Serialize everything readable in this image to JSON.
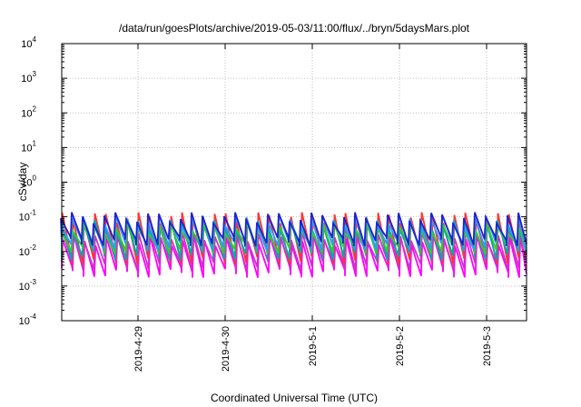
{
  "chart_data": {
    "type": "line",
    "title": "/data/run/goesPlots/archive/2019-05-03/11:00/flux/../bryn/5daysMars.plot",
    "xlabel": "Coordinated Universal Time (UTC)",
    "ylabel": "cSv/day",
    "yscale": "log",
    "ylim": [
      0.0001,
      10000
    ],
    "yticks": [
      {
        "base": "10",
        "exp": "-4",
        "value": 0.0001
      },
      {
        "base": "10",
        "exp": "-3",
        "value": 0.001
      },
      {
        "base": "10",
        "exp": "-2",
        "value": 0.01
      },
      {
        "base": "10",
        "exp": "-1",
        "value": 0.1
      },
      {
        "base": "10",
        "exp": "0",
        "value": 1
      },
      {
        "base": "10",
        "exp": "1",
        "value": 10
      },
      {
        "base": "10",
        "exp": "2",
        "value": 100
      },
      {
        "base": "10",
        "exp": "3",
        "value": 1000
      },
      {
        "base": "10",
        "exp": "4",
        "value": 10000
      }
    ],
    "xlim": [
      "2019-04-28T03:00",
      "2019-05-03T11:00"
    ],
    "xticks": [
      "2019-4-29",
      "2019-4-30",
      "2019-5-1",
      "2019-5-2",
      "2019-5-3"
    ],
    "grid": true,
    "series": [
      {
        "color": "#ff00ff",
        "peak": 0.022,
        "trough": 0.0025
      },
      {
        "color": "#cc33cc",
        "peak": 0.03,
        "trough": 0.004
      },
      {
        "color": "#ff3333",
        "peak": 0.1,
        "trough": 0.006
      },
      {
        "color": "#00aaaa",
        "peak": 0.06,
        "trough": 0.008
      },
      {
        "color": "#33cc33",
        "peak": 0.05,
        "trough": 0.012
      },
      {
        "color": "#3399ff",
        "peak": 0.08,
        "trough": 0.015
      },
      {
        "color": "#2222cc",
        "peak": 0.1,
        "trough": 0.02
      }
    ],
    "cycle_hours": 3,
    "note": "Sawtooth: each series rises sharply to its peak at the start of every ~3h cycle then decays to its trough."
  }
}
